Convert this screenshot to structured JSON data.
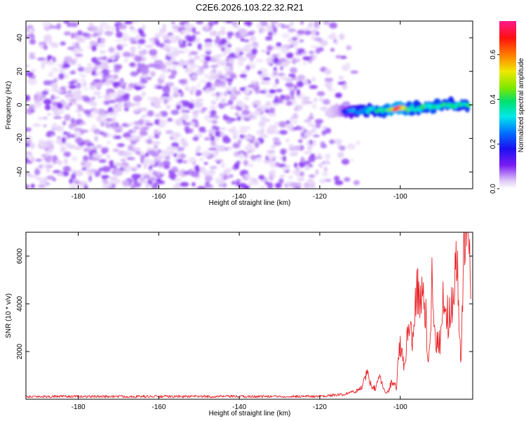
{
  "figure": {
    "title": "C2E6.2026.103.22.32.R21"
  },
  "colors": {
    "snr_line": "#e8262b",
    "frame": "#000000",
    "colormap": [
      "#ffffff",
      "#ddc4f6",
      "#7a1cf4",
      "#1a10f0",
      "#0078ff",
      "#00e8e8",
      "#00e070",
      "#7ce800",
      "#f0e800",
      "#ff7a00",
      "#ff1010",
      "#ff1a8c"
    ]
  },
  "chart_data": [
    {
      "type": "heatmap",
      "xlabel": "Height of straight line (km)",
      "ylabel": "Frequency (Hz)",
      "xlim": [
        -193,
        -82
      ],
      "ylim": [
        -50,
        50
      ],
      "xticks": [
        -180,
        -160,
        -140,
        -120,
        -100
      ],
      "yticks": [
        -40,
        -20,
        0,
        20,
        40
      ],
      "colorbar": {
        "label": "Normalized spectral amplitude",
        "range": [
          0,
          0.75
        ],
        "ticks": [
          "0.0",
          "0.2",
          "0.4",
          "0.6"
        ],
        "tick_values": [
          0.0,
          0.2,
          0.4,
          0.6
        ]
      },
      "noise_floor": {
        "x_range": [
          -193,
          -110
        ],
        "amplitude_range": [
          0.02,
          0.12
        ],
        "description": "speckled background across all frequencies"
      },
      "signal_track": {
        "x": [
          -118,
          -115,
          -112,
          -110,
          -107,
          -104,
          -101,
          -98,
          -95,
          -92,
          -89,
          -86,
          -83
        ],
        "frequency": [
          -5,
          -4,
          -4,
          -4,
          -3,
          -3,
          -2,
          -2,
          -2,
          -1,
          0,
          0,
          0
        ],
        "amplitude": [
          0.1,
          0.15,
          0.3,
          0.35,
          0.38,
          0.42,
          0.72,
          0.45,
          0.4,
          0.45,
          0.42,
          0.4,
          0.42
        ]
      }
    },
    {
      "type": "line",
      "xlabel": "Height of straight line (km)",
      "ylabel": "SNR (10 * v/v)",
      "xlim": [
        -193,
        -82
      ],
      "ylim": [
        0,
        7000
      ],
      "xticks": [
        -180,
        -160,
        -140,
        -120,
        -100
      ],
      "yticks": [
        2000,
        4000,
        6000
      ],
      "series": [
        {
          "x": [
            -193,
            -180,
            -160,
            -140,
            -120,
            -114,
            -110,
            -108,
            -107,
            -106,
            -105,
            -104,
            -103,
            -102,
            -101,
            -100,
            -99,
            -98,
            -97,
            -96,
            -95,
            -94,
            -93,
            -92,
            -91,
            -90,
            -89,
            -88,
            -87,
            -86,
            -85,
            -84,
            -83,
            -82.5
          ],
          "values": [
            60,
            60,
            60,
            60,
            70,
            150,
            400,
            1100,
            400,
            500,
            900,
            400,
            300,
            800,
            500,
            2500,
            1200,
            3200,
            2600,
            4700,
            4000,
            4400,
            1500,
            5300,
            2200,
            2600,
            4700,
            3200,
            4300,
            6100,
            1500,
            6700,
            6900,
            4200
          ]
        }
      ]
    }
  ]
}
